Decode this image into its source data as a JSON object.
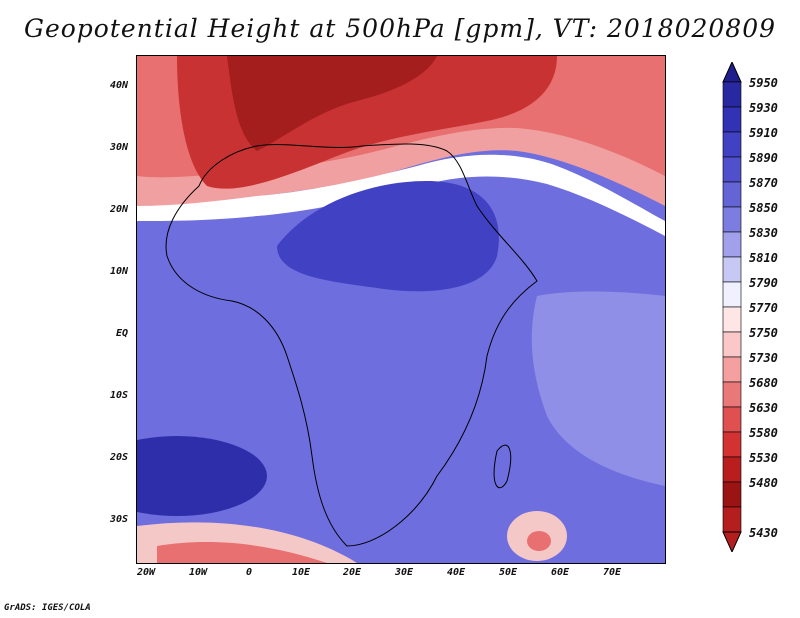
{
  "title": "Geopotential Height at 500hPa [gpm], VT: 2018020809",
  "credit": "GrADS: IGES/COLA",
  "map": {
    "variable": "Geopotential Height at 500hPa",
    "units": "gpm",
    "valid_time": "2018020809",
    "lat_range": [
      -37,
      45
    ],
    "lon_range": [
      -22,
      78
    ],
    "lat_labels": [
      "40N",
      "30N",
      "20N",
      "10N",
      "EQ",
      "10S",
      "20S",
      "30S"
    ],
    "lon_labels": [
      "20W",
      "10W",
      "0",
      "10E",
      "20E",
      "30E",
      "40E",
      "50E",
      "60E",
      "70E"
    ]
  },
  "legend": {
    "levels": [
      "5950",
      "5930",
      "5910",
      "5890",
      "5870",
      "5850",
      "5830",
      "5810",
      "5790",
      "5770",
      "5750",
      "5730",
      "5680",
      "5630",
      "5580",
      "5530",
      "5480",
      "5430"
    ],
    "colors": [
      "#1e1e8c",
      "#2828a0",
      "#3232b4",
      "#4141c3",
      "#5050cd",
      "#6464d7",
      "#7d7de1",
      "#a0a0eb",
      "#c8c8f5",
      "#f0f0ff",
      "#ffe6e6",
      "#fac8c8",
      "#f5a0a0",
      "#eb7878",
      "#e15050",
      "#d23232",
      "#b91e1e",
      "#9b1414",
      "#b41e1e"
    ]
  }
}
